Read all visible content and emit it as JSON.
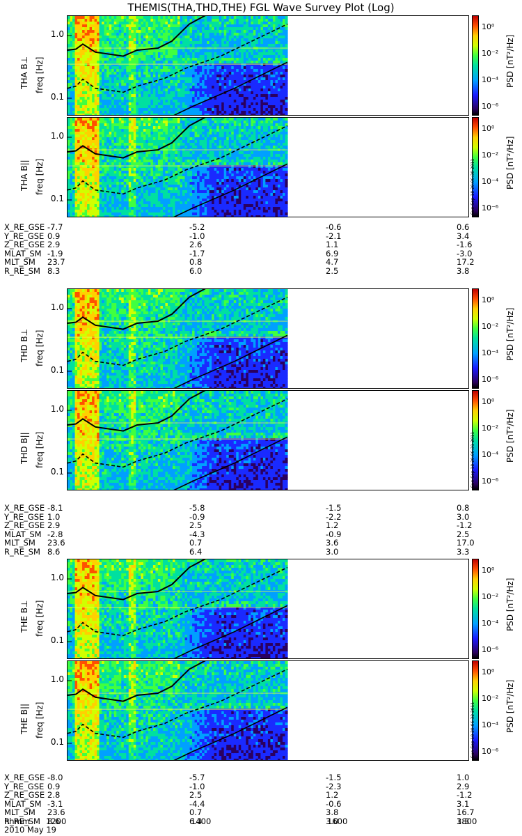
{
  "title": "THEMIS(THA,THD,THE) FGL Wave Survey Plot (Log)",
  "chart_data": {
    "type": "heatmap",
    "y_scale": "log",
    "y_ticks": [
      "1.0",
      "0.1"
    ],
    "y_label": "freq [Hz]",
    "colorbar": {
      "label": "PSD [nT²/Hz]",
      "ticks": [
        "10⁰",
        "10⁻²",
        "10⁻⁴",
        "10⁻⁶"
      ],
      "stamp_panels": [
        "Sun Sep 18 20:06:30 2011",
        "Sun Sep 18 20:06:31 2011",
        "Sun Sep 18 20:06:32 2011"
      ]
    },
    "x_ticks": [
      "1200",
      "1400",
      "1600",
      "1800"
    ],
    "x_label": "hhmm",
    "date": "2010 May 19",
    "panels": [
      {
        "name": "THA B⊥"
      },
      {
        "name": "THA B||"
      },
      {
        "name": "THD B⊥"
      },
      {
        "name": "THD B||"
      },
      {
        "name": "THE B⊥"
      },
      {
        "name": "THE B||"
      }
    ]
  },
  "ephemeris": [
    {
      "rows": [
        {
          "label": "X_RE_GSE",
          "values": [
            "-7.7",
            "-5.2",
            "-0.6",
            "0.6"
          ]
        },
        {
          "label": "Y_RE_GSE",
          "values": [
            "0.9",
            "-1.0",
            "-2.1",
            "3.4"
          ]
        },
        {
          "label": "Z_RE_GSE",
          "values": [
            "2.9",
            "2.6",
            "1.1",
            "-1.6"
          ]
        },
        {
          "label": "MLAT_SM",
          "values": [
            "-1.9",
            "-1.7",
            "6.9",
            "-3.0"
          ]
        },
        {
          "label": "MLT_SM",
          "values": [
            "23.7",
            "0.8",
            "4.7",
            "17.2"
          ]
        },
        {
          "label": "R_RE_SM",
          "values": [
            "8.3",
            "6.0",
            "2.5",
            "3.8"
          ]
        }
      ]
    },
    {
      "rows": [
        {
          "label": "X_RE_GSE",
          "values": [
            "-8.1",
            "-5.8",
            "-1.5",
            "0.8"
          ]
        },
        {
          "label": "Y_RE_GSE",
          "values": [
            "1.0",
            "-0.9",
            "-2.2",
            "3.0"
          ]
        },
        {
          "label": "Z_RE_GSE",
          "values": [
            "2.9",
            "2.5",
            "1.2",
            "-1.2"
          ]
        },
        {
          "label": "MLAT_SM",
          "values": [
            "-2.8",
            "-4.3",
            "-0.9",
            "2.5"
          ]
        },
        {
          "label": "MLT_SM",
          "values": [
            "23.6",
            "0.7",
            "3.6",
            "17.0"
          ]
        },
        {
          "label": "R_RE_SM",
          "values": [
            "8.6",
            "6.4",
            "3.0",
            "3.3"
          ]
        }
      ]
    },
    {
      "rows": [
        {
          "label": "X_RE_GSE",
          "values": [
            "-8.0",
            "-5.7",
            "-1.5",
            "1.0"
          ]
        },
        {
          "label": "Y_RE_GSE",
          "values": [
            "0.9",
            "-1.0",
            "-2.3",
            "2.9"
          ]
        },
        {
          "label": "Z_RE_GSE",
          "values": [
            "2.8",
            "2.5",
            "1.2",
            "-1.2"
          ]
        },
        {
          "label": "MLAT_SM",
          "values": [
            "-3.1",
            "-4.4",
            "-0.6",
            "3.1"
          ]
        },
        {
          "label": "MLT_SM",
          "values": [
            "23.6",
            "0.7",
            "3.8",
            "16.7"
          ]
        },
        {
          "label": "R_RE_SM",
          "values": [
            "8.6",
            "6.3",
            "3.0",
            "3.3"
          ]
        }
      ]
    }
  ]
}
